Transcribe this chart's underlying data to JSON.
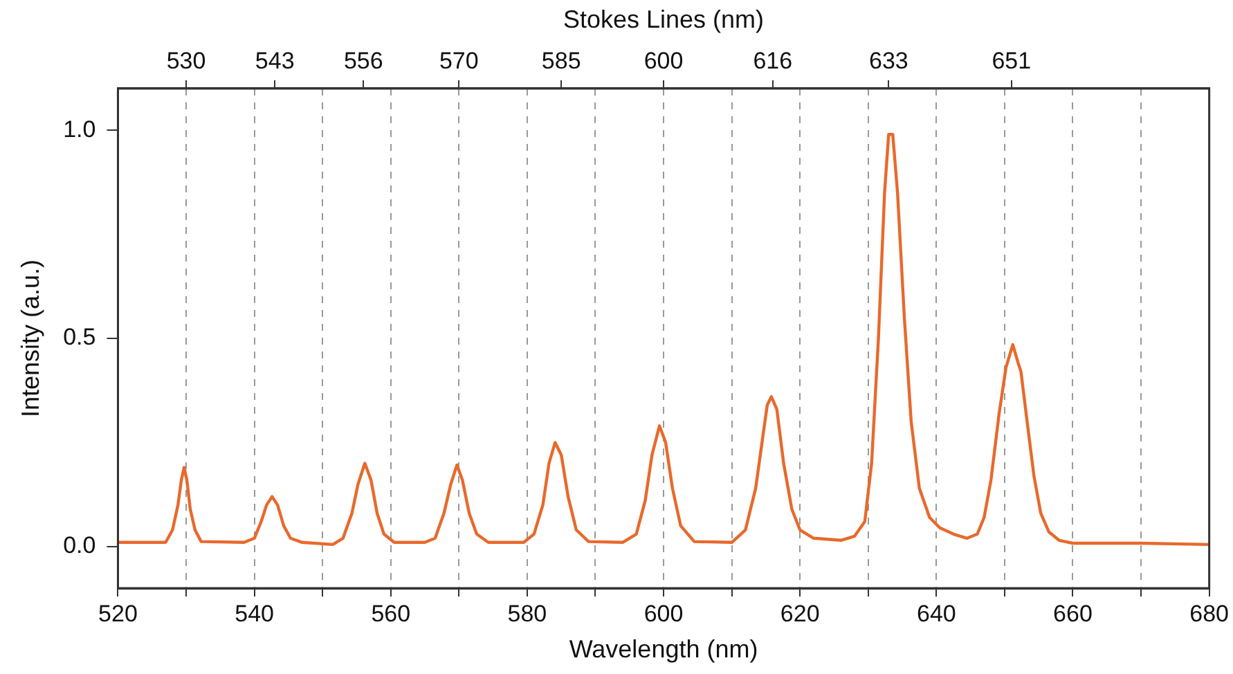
{
  "chart_data": {
    "type": "line",
    "xlabel": "Wavelength (nm)",
    "x2label": "Stokes Lines (nm)",
    "ylabel": "Intensity (a.u.)",
    "xlim": [
      520,
      680
    ],
    "xticks": [
      520,
      {
        "value": 530,
        "label": null
      },
      540,
      {
        "value": 550,
        "label": null
      },
      560,
      {
        "value": 570,
        "label": null
      },
      580,
      {
        "value": 590,
        "label": null
      },
      600,
      {
        "value": 610,
        "label": null
      },
      620,
      {
        "value": 630,
        "label": null
      },
      640,
      {
        "value": 650,
        "label": null
      },
      660,
      {
        "value": 670,
        "label": null
      },
      680
    ],
    "x2lim": [
      520,
      680
    ],
    "x2ticks": [
      530,
      543,
      556,
      570,
      585,
      600,
      616,
      633,
      651
    ],
    "ylim": [
      -0.1,
      1.1
    ],
    "yticks": [
      {
        "value": 0,
        "label": "0.0"
      },
      {
        "value": 0.5,
        "label": "0.5"
      },
      {
        "value": 1,
        "label": "1.0"
      }
    ],
    "grid": "x",
    "legend": false,
    "marker": "none",
    "line_style": "solid",
    "series": [
      {
        "color": "#e8692c",
        "x": [
          520,
          526,
          527.0,
          528.0,
          528.8,
          529.3,
          529.7,
          530.1,
          530.6,
          531.3,
          532.2,
          538.5,
          540,
          541,
          541.8,
          542.6,
          543.4,
          544.3,
          545.3,
          547,
          551.5,
          553,
          554.3,
          555.2,
          556.2,
          557.1,
          558,
          559,
          560.5,
          565,
          566.5,
          567.8,
          568.8,
          569.7,
          570.5,
          571.5,
          572.6,
          574.3,
          579.5,
          581,
          582.3,
          583.2,
          584.1,
          585,
          586,
          587.2,
          589,
          594,
          596,
          597.3,
          598.3,
          599.4,
          600.3,
          601.3,
          602.5,
          604.5,
          610,
          612,
          613.5,
          614.6,
          615.2,
          615.8,
          616.6,
          617.6,
          618.8,
          620,
          622,
          626,
          628,
          629.5,
          630.5,
          631.5,
          632.4,
          633.0,
          633.6,
          634.3,
          635.3,
          636.3,
          637.5,
          639,
          640.5,
          642.5,
          644.5,
          646,
          647,
          648,
          649.2,
          650.2,
          651.2,
          652.0,
          652.4,
          653.3,
          654.3,
          655.3,
          656.5,
          658,
          660,
          670,
          680
        ],
        "values": [
          0.01,
          0.01,
          0.01,
          0.04,
          0.1,
          0.16,
          0.19,
          0.16,
          0.09,
          0.04,
          0.012,
          0.01,
          0.02,
          0.06,
          0.1,
          0.12,
          0.1,
          0.05,
          0.02,
          0.01,
          0.005,
          0.02,
          0.08,
          0.15,
          0.2,
          0.16,
          0.08,
          0.03,
          0.01,
          0.01,
          0.02,
          0.08,
          0.15,
          0.196,
          0.16,
          0.08,
          0.03,
          0.01,
          0.01,
          0.03,
          0.1,
          0.2,
          0.25,
          0.22,
          0.12,
          0.04,
          0.012,
          0.01,
          0.03,
          0.11,
          0.22,
          0.29,
          0.25,
          0.14,
          0.05,
          0.012,
          0.01,
          0.04,
          0.14,
          0.27,
          0.34,
          0.36,
          0.33,
          0.2,
          0.09,
          0.04,
          0.02,
          0.015,
          0.025,
          0.06,
          0.2,
          0.5,
          0.85,
          0.99,
          0.99,
          0.85,
          0.55,
          0.3,
          0.14,
          0.07,
          0.045,
          0.03,
          0.02,
          0.03,
          0.07,
          0.16,
          0.32,
          0.43,
          0.485,
          0.44,
          0.42,
          0.3,
          0.17,
          0.08,
          0.035,
          0.015,
          0.008,
          0.008,
          0.005
        ]
      }
    ]
  }
}
